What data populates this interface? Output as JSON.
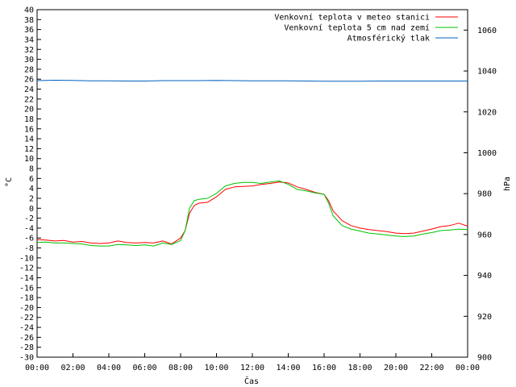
{
  "chart_data": {
    "type": "line",
    "xlabel": "Čas",
    "ylabel": "°C",
    "y2label": "hPa",
    "x_ticks": [
      "00:00",
      "02:00",
      "04:00",
      "06:00",
      "08:00",
      "10:00",
      "12:00",
      "14:00",
      "16:00",
      "18:00",
      "20:00",
      "22:00",
      "00:00"
    ],
    "x_range_hours": [
      0,
      24
    ],
    "ylim": [
      -30,
      40
    ],
    "y_tick_step": 2,
    "y2lim": [
      900,
      1070
    ],
    "y2_ticks": [
      900,
      920,
      940,
      960,
      980,
      1000,
      1020,
      1040,
      1060
    ],
    "grid": false,
    "legend_placement": "top-right",
    "series": [
      {
        "name": "Venkovní teplota v meteo stanici",
        "axis": "left",
        "color": "#ff0000",
        "points": [
          [
            0,
            -6.3
          ],
          [
            0.5,
            -6.4
          ],
          [
            1,
            -6.6
          ],
          [
            1.5,
            -6.5
          ],
          [
            2,
            -6.8
          ],
          [
            2.5,
            -6.7
          ],
          [
            3,
            -7.0
          ],
          [
            3.5,
            -7.1
          ],
          [
            4,
            -7.0
          ],
          [
            4.5,
            -6.6
          ],
          [
            5,
            -6.9
          ],
          [
            5.5,
            -7.0
          ],
          [
            6,
            -6.9
          ],
          [
            6.5,
            -7.0
          ],
          [
            7,
            -6.6
          ],
          [
            7.5,
            -7.2
          ],
          [
            8,
            -6.0
          ],
          [
            8.25,
            -4.5
          ],
          [
            8.5,
            -1.0
          ],
          [
            8.75,
            0.5
          ],
          [
            9,
            1.0
          ],
          [
            9.5,
            1.2
          ],
          [
            10,
            2.3
          ],
          [
            10.5,
            3.8
          ],
          [
            11,
            4.3
          ],
          [
            11.5,
            4.4
          ],
          [
            12,
            4.5
          ],
          [
            12.5,
            4.8
          ],
          [
            13,
            5.0
          ],
          [
            13.5,
            5.3
          ],
          [
            14,
            5.1
          ],
          [
            14.5,
            4.3
          ],
          [
            15,
            3.8
          ],
          [
            15.5,
            3.2
          ],
          [
            16,
            2.8
          ],
          [
            16.25,
            1.5
          ],
          [
            16.5,
            -0.5
          ],
          [
            17,
            -2.5
          ],
          [
            17.5,
            -3.5
          ],
          [
            18,
            -4.0
          ],
          [
            18.5,
            -4.3
          ],
          [
            19,
            -4.5
          ],
          [
            19.5,
            -4.7
          ],
          [
            20,
            -5.0
          ],
          [
            20.5,
            -5.1
          ],
          [
            21,
            -5.0
          ],
          [
            21.5,
            -4.6
          ],
          [
            22,
            -4.2
          ],
          [
            22.5,
            -3.7
          ],
          [
            23,
            -3.5
          ],
          [
            23.5,
            -3.0
          ],
          [
            24,
            -3.6
          ]
        ]
      },
      {
        "name": "Venkovní teplota 5 cm nad zemí",
        "axis": "left",
        "color": "#00c000",
        "points": [
          [
            0,
            -6.9
          ],
          [
            0.5,
            -6.8
          ],
          [
            1,
            -7.0
          ],
          [
            1.5,
            -7.0
          ],
          [
            2,
            -7.1
          ],
          [
            2.5,
            -7.2
          ],
          [
            3,
            -7.5
          ],
          [
            3.5,
            -7.6
          ],
          [
            4,
            -7.6
          ],
          [
            4.5,
            -7.3
          ],
          [
            5,
            -7.4
          ],
          [
            5.5,
            -7.5
          ],
          [
            6,
            -7.4
          ],
          [
            6.5,
            -7.6
          ],
          [
            7,
            -7.0
          ],
          [
            7.5,
            -7.3
          ],
          [
            8,
            -6.5
          ],
          [
            8.25,
            -4.5
          ],
          [
            8.5,
            0.0
          ],
          [
            8.75,
            1.5
          ],
          [
            9,
            1.8
          ],
          [
            9.5,
            2.0
          ],
          [
            10,
            3.0
          ],
          [
            10.5,
            4.5
          ],
          [
            11,
            5.0
          ],
          [
            11.5,
            5.2
          ],
          [
            12,
            5.2
          ],
          [
            12.5,
            5.0
          ],
          [
            13,
            5.3
          ],
          [
            13.5,
            5.5
          ],
          [
            14,
            4.8
          ],
          [
            14.5,
            3.8
          ],
          [
            15,
            3.5
          ],
          [
            15.5,
            3.1
          ],
          [
            16,
            2.8
          ],
          [
            16.25,
            1.0
          ],
          [
            16.5,
            -1.5
          ],
          [
            17,
            -3.5
          ],
          [
            17.5,
            -4.2
          ],
          [
            18,
            -4.6
          ],
          [
            18.5,
            -5.0
          ],
          [
            19,
            -5.2
          ],
          [
            19.5,
            -5.4
          ],
          [
            20,
            -5.6
          ],
          [
            20.5,
            -5.7
          ],
          [
            21,
            -5.6
          ],
          [
            21.5,
            -5.2
          ],
          [
            22,
            -4.9
          ],
          [
            22.5,
            -4.5
          ],
          [
            23,
            -4.4
          ],
          [
            23.5,
            -4.2
          ],
          [
            24,
            -4.3
          ]
        ]
      },
      {
        "name": "Atmosférický tlak",
        "axis": "right",
        "color": "#0060c0",
        "points": [
          [
            0,
            1035.3
          ],
          [
            1,
            1035.5
          ],
          [
            2,
            1035.4
          ],
          [
            3,
            1035.2
          ],
          [
            4,
            1035.2
          ],
          [
            5,
            1035.1
          ],
          [
            6,
            1035.1
          ],
          [
            7,
            1035.3
          ],
          [
            8,
            1035.3
          ],
          [
            9,
            1035.3
          ],
          [
            10,
            1035.4
          ],
          [
            11,
            1035.3
          ],
          [
            12,
            1035.2
          ],
          [
            13,
            1035.2
          ],
          [
            14,
            1035.2
          ],
          [
            15,
            1035.1
          ],
          [
            16,
            1035.0
          ],
          [
            17,
            1035.0
          ],
          [
            18,
            1035.0
          ],
          [
            19,
            1035.1
          ],
          [
            20,
            1035.1
          ],
          [
            21,
            1035.1
          ],
          [
            22,
            1035.1
          ],
          [
            23,
            1035.1
          ],
          [
            24,
            1035.1
          ]
        ]
      }
    ]
  }
}
